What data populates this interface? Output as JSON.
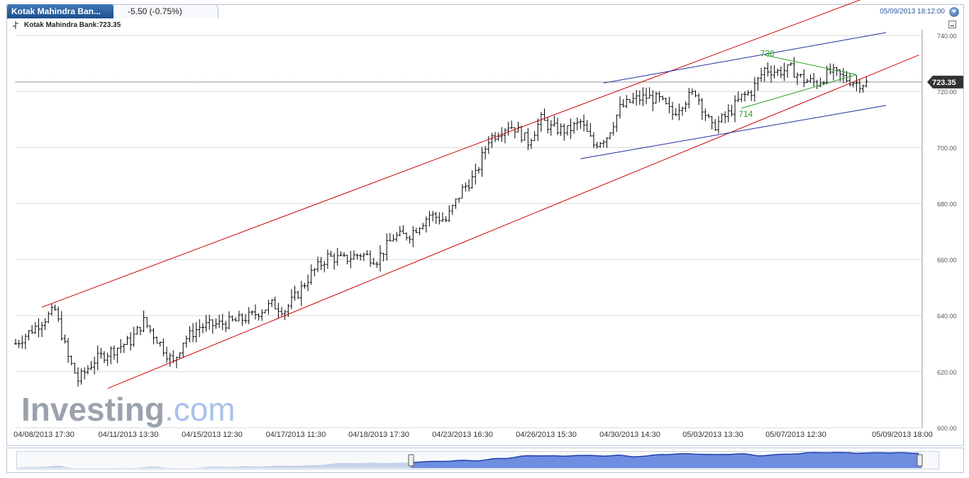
{
  "header": {
    "tab_title": "Kotak Mahindra Ban...",
    "change": "-5.50 (-0.75%)",
    "datetime": "05/09/2013 18:12:00",
    "legend": "Kotak Mahindra Bank:723.35",
    "current_price_label": "723.35",
    "refresh_icon": "refresh-icon",
    "minimize_icon": "minimize-icon"
  },
  "watermark": {
    "brand": "Investing",
    "suffix": ".com"
  },
  "colors": {
    "channel": "#cc0000",
    "wedge": "#1f2d9e",
    "triangle": "#2aa02a",
    "price_tag": "#333333",
    "navigator_fill": "#6f8ee0",
    "navigator_line": "#1f3fb0"
  },
  "chart_data": {
    "type": "ohlc",
    "instrument": "Kotak Mahindra Bank",
    "last": 723.35,
    "ylim": [
      600,
      740
    ],
    "yticks": [
      "600.00",
      "620.00",
      "640.00",
      "660.00",
      "680.00",
      "700.00",
      "720.00",
      "740.00"
    ],
    "xticks": [
      "04/08/2013 17:30",
      "04/11/2013 13:30",
      "04/15/2013 12:30",
      "04/17/2013 11:30",
      "04/18/2013 17:30",
      "04/23/2013 16:30",
      "04/26/2013 15:30",
      "04/30/2013 14:30",
      "05/03/2013 13:30",
      "05/07/2013 12:30",
      "05/09/2013 18:00"
    ],
    "grid": true,
    "close_path": [
      [
        0,
        630
      ],
      [
        8,
        638
      ],
      [
        12,
        642
      ],
      [
        16,
        625
      ],
      [
        19,
        617
      ],
      [
        24,
        624
      ],
      [
        30,
        628
      ],
      [
        35,
        631
      ],
      [
        39,
        638
      ],
      [
        44,
        630
      ],
      [
        48,
        623
      ],
      [
        51,
        631
      ],
      [
        56,
        636
      ],
      [
        62,
        637
      ],
      [
        67,
        638
      ],
      [
        72,
        640
      ],
      [
        78,
        644
      ],
      [
        82,
        642
      ],
      [
        86,
        648
      ],
      [
        90,
        655
      ],
      [
        95,
        661
      ],
      [
        100,
        660
      ],
      [
        105,
        662
      ],
      [
        110,
        660
      ],
      [
        115,
        668
      ],
      [
        120,
        669
      ],
      [
        126,
        676
      ],
      [
        131,
        674
      ],
      [
        136,
        685
      ],
      [
        140,
        690
      ],
      [
        144,
        703
      ],
      [
        150,
        708
      ],
      [
        152,
        707
      ],
      [
        156,
        702
      ],
      [
        160,
        710
      ],
      [
        163,
        707
      ],
      [
        168,
        706
      ],
      [
        172,
        709
      ],
      [
        176,
        701
      ],
      [
        180,
        704
      ],
      [
        184,
        714
      ],
      [
        188,
        717
      ],
      [
        192,
        718
      ],
      [
        196,
        717
      ],
      [
        200,
        712
      ],
      [
        203,
        716
      ],
      [
        207,
        720
      ],
      [
        210,
        712
      ],
      [
        212,
        707
      ],
      [
        217,
        712
      ],
      [
        221,
        718
      ],
      [
        224,
        720
      ],
      [
        228,
        728
      ],
      [
        232,
        727
      ],
      [
        236,
        728
      ],
      [
        240,
        724
      ],
      [
        244,
        723
      ],
      [
        248,
        727
      ],
      [
        252,
        725
      ],
      [
        256,
        723
      ],
      [
        259,
        723
      ]
    ],
    "annotations": [
      {
        "text": "730",
        "x": 228,
        "y": 730
      },
      {
        "text": "714",
        "x": 221,
        "y": 714
      }
    ],
    "drawings": {
      "channel_lines": [
        {
          "from": [
            8,
            643
          ],
          "to": [
            276,
            761
          ]
        },
        {
          "from": [
            28,
            614
          ],
          "to": [
            275,
            733
          ]
        }
      ],
      "wedge_lines": [
        {
          "from": [
            179,
            723
          ],
          "to": [
            265,
            741
          ]
        },
        {
          "from": [
            172,
            696
          ],
          "to": [
            265,
            715
          ]
        }
      ],
      "triangle_lines": [
        {
          "from": [
            228,
            733
          ],
          "to": [
            256,
            726
          ]
        },
        {
          "from": [
            221,
            714
          ],
          "to": [
            256,
            726
          ]
        }
      ]
    },
    "navigator": {
      "handles": [
        "left-handle",
        "right-handle"
      ]
    }
  }
}
